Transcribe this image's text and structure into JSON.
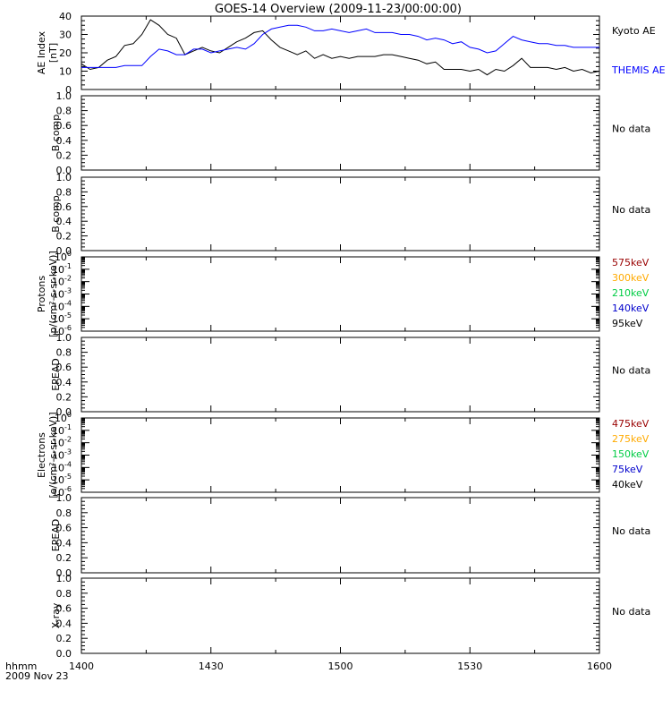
{
  "title": "GOES-14 Overview (2009-11-23/00:00:00)",
  "x_axis": {
    "corner_label": "hhmm",
    "date_label": "2009 Nov 23",
    "ticks": [
      "1400",
      "1430",
      "1500",
      "1530",
      "1600"
    ]
  },
  "no_data_text": "No data",
  "chart_data": [
    {
      "type": "line",
      "ylabel_lines": [
        "AE Index",
        "[nT]"
      ],
      "ylim": [
        0,
        40
      ],
      "yticks": [
        "0",
        "10",
        "20",
        "30",
        "40"
      ],
      "x": [
        "14:00",
        "14:02",
        "14:04",
        "14:06",
        "14:08",
        "14:10",
        "14:12",
        "14:14",
        "14:16",
        "14:18",
        "14:20",
        "14:22",
        "14:24",
        "14:26",
        "14:28",
        "14:30",
        "14:32",
        "14:34",
        "14:36",
        "14:38",
        "14:40",
        "14:42",
        "14:44",
        "14:46",
        "14:48",
        "14:50",
        "14:52",
        "14:54",
        "14:56",
        "14:58",
        "15:00",
        "15:02",
        "15:04",
        "15:06",
        "15:08",
        "15:10",
        "15:12",
        "15:14",
        "15:16",
        "15:18",
        "15:20",
        "15:22",
        "15:24",
        "15:26",
        "15:28",
        "15:30",
        "15:32",
        "15:34",
        "15:36",
        "15:38",
        "15:40",
        "15:42",
        "15:44",
        "15:46",
        "15:48",
        "15:50",
        "15:52",
        "15:54",
        "15:56",
        "15:58",
        "16:00"
      ],
      "series": [
        {
          "name": "Kyoto AE",
          "color": "#000000",
          "values": [
            14,
            11,
            12,
            16,
            18,
            24,
            25,
            30,
            38,
            35,
            30,
            28,
            19,
            21,
            23,
            21,
            20,
            23,
            26,
            28,
            31,
            32,
            27,
            23,
            21,
            19,
            21,
            17,
            19,
            17,
            18,
            17,
            18,
            18,
            18,
            19,
            19,
            18,
            17,
            16,
            14,
            15,
            11,
            11,
            11,
            10,
            11,
            8,
            11,
            10,
            13,
            17,
            12,
            12,
            12,
            11,
            12,
            10,
            11,
            9,
            10
          ]
        },
        {
          "name": "THEMIS AE",
          "color": "#0000ff",
          "values": [
            12,
            12,
            12,
            12,
            12,
            13,
            13,
            13,
            18,
            22,
            21,
            19,
            19,
            22,
            22,
            20,
            21,
            22,
            23,
            22,
            25,
            30,
            33,
            34,
            35,
            35,
            34,
            32,
            32,
            33,
            32,
            31,
            32,
            33,
            31,
            31,
            31,
            30,
            30,
            29,
            27,
            28,
            27,
            25,
            26,
            23,
            22,
            20,
            21,
            25,
            29,
            27,
            26,
            25,
            25,
            24,
            24,
            23,
            23,
            23,
            23
          ]
        }
      ]
    },
    {
      "type": "line",
      "ylabel_lines": [
        "B comp"
      ],
      "ylim": [
        0,
        1
      ],
      "yticks": [
        "0.0",
        "0.2",
        "0.4",
        "0.6",
        "0.8",
        "1.0"
      ],
      "series": [],
      "status": "No data"
    },
    {
      "type": "line",
      "ylabel_lines": [
        "B comp"
      ],
      "ylim": [
        0,
        1
      ],
      "yticks": [
        "0.0",
        "0.2",
        "0.4",
        "0.6",
        "0.8",
        "1.0"
      ],
      "series": [],
      "status": "No data"
    },
    {
      "type": "line",
      "scale": "log",
      "ylabel_lines": [
        "Protons",
        "[p/(cm²-s-sr-keV)]"
      ],
      "ylim": [
        1e-06,
        1
      ],
      "yticks": [
        {
          "base": "10",
          "exp": "0"
        },
        {
          "base": "10",
          "exp": "-1"
        },
        {
          "base": "10",
          "exp": "-2"
        },
        {
          "base": "10",
          "exp": "-3"
        },
        {
          "base": "10",
          "exp": "-4"
        },
        {
          "base": "10",
          "exp": "-5"
        },
        {
          "base": "10",
          "exp": "-6"
        }
      ],
      "series": [],
      "legend": [
        {
          "name": "575keV",
          "color": "#990000"
        },
        {
          "name": "300keV",
          "color": "#ffaa00"
        },
        {
          "name": "210keV",
          "color": "#00cc44"
        },
        {
          "name": "140keV",
          "color": "#0000cc"
        },
        {
          "name": "95keV",
          "color": "#000000"
        }
      ]
    },
    {
      "type": "line",
      "ylabel_lines": [
        "EPEAD"
      ],
      "ylim": [
        0,
        1
      ],
      "yticks": [
        "0.0",
        "0.2",
        "0.4",
        "0.6",
        "0.8",
        "1.0"
      ],
      "series": [],
      "status": "No data"
    },
    {
      "type": "line",
      "scale": "log",
      "ylabel_lines": [
        "Electrons",
        "[e/(cm²-s-sr-keV)]"
      ],
      "ylim": [
        1e-06,
        1
      ],
      "yticks": [
        {
          "base": "10",
          "exp": "0"
        },
        {
          "base": "10",
          "exp": "-1"
        },
        {
          "base": "10",
          "exp": "-2"
        },
        {
          "base": "10",
          "exp": "-3"
        },
        {
          "base": "10",
          "exp": "-4"
        },
        {
          "base": "10",
          "exp": "-5"
        },
        {
          "base": "10",
          "exp": "-6"
        }
      ],
      "series": [],
      "legend": [
        {
          "name": "475keV",
          "color": "#990000"
        },
        {
          "name": "275keV",
          "color": "#ffaa00"
        },
        {
          "name": "150keV",
          "color": "#00cc44"
        },
        {
          "name": "75keV",
          "color": "#0000cc"
        },
        {
          "name": "40keV",
          "color": "#000000"
        }
      ]
    },
    {
      "type": "line",
      "ylabel_lines": [
        "EPEAD"
      ],
      "ylim": [
        0,
        1
      ],
      "yticks": [
        "0.0",
        "0.2",
        "0.4",
        "0.6",
        "0.8",
        "1.0"
      ],
      "series": [],
      "status": "No data"
    },
    {
      "type": "line",
      "ylabel_lines": [
        "X-ray"
      ],
      "ylim": [
        0,
        1
      ],
      "yticks": [
        "0.0",
        "0.2",
        "0.4",
        "0.6",
        "0.8",
        "1.0"
      ],
      "series": [],
      "status": "No data"
    }
  ]
}
